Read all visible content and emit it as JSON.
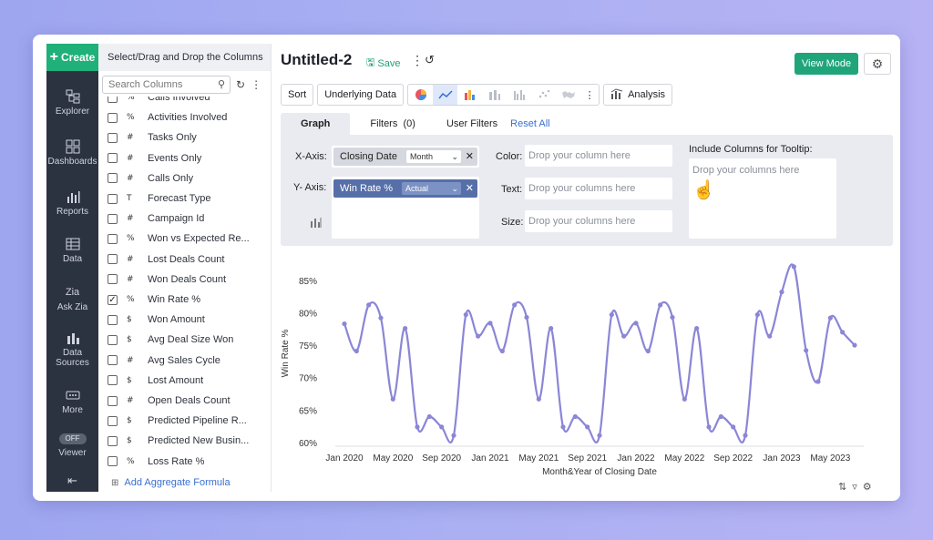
{
  "rail": {
    "create": "Create",
    "items": [
      {
        "label": "Explorer",
        "icon": "explorer-icon"
      },
      {
        "label": "Dashboards",
        "icon": "dashboards-icon"
      },
      {
        "label": "Reports",
        "icon": "reports-icon"
      },
      {
        "label": "Data",
        "icon": "data-icon"
      },
      {
        "label": "Ask Zia",
        "icon": "zia-icon"
      },
      {
        "label": "Data Sources",
        "icon": "data-sources-icon"
      },
      {
        "label": "More",
        "icon": "more-icon"
      },
      {
        "label": "Viewer",
        "icon": "viewer-icon"
      }
    ],
    "viewer_badge": "OFF"
  },
  "columns": {
    "header": "Select/Drag and Drop the Columns",
    "search_placeholder": "Search Columns",
    "items": [
      {
        "label": "Calls Involved",
        "type": "%",
        "checked": false
      },
      {
        "label": "Activities Involved",
        "type": "%",
        "checked": false
      },
      {
        "label": "Tasks Only",
        "type": "#",
        "checked": false
      },
      {
        "label": "Events Only",
        "type": "#",
        "checked": false
      },
      {
        "label": "Calls Only",
        "type": "#",
        "checked": false
      },
      {
        "label": "Forecast Type",
        "type": "T",
        "checked": false
      },
      {
        "label": "Campaign Id",
        "type": "#",
        "checked": false
      },
      {
        "label": "Won vs Expected Re...",
        "type": "%",
        "checked": false
      },
      {
        "label": "Lost Deals Count",
        "type": "#",
        "checked": false
      },
      {
        "label": "Won Deals Count",
        "type": "#",
        "checked": false
      },
      {
        "label": "Win Rate %",
        "type": "%",
        "checked": true
      },
      {
        "label": "Won Amount",
        "type": "$",
        "checked": false
      },
      {
        "label": "Avg Deal Size Won",
        "type": "$",
        "checked": false
      },
      {
        "label": "Avg Sales Cycle",
        "type": "#",
        "checked": false
      },
      {
        "label": "Lost Amount",
        "type": "$",
        "checked": false
      },
      {
        "label": "Open Deals Count",
        "type": "#",
        "checked": false
      },
      {
        "label": "Predicted Pipeline R...",
        "type": "$",
        "checked": false
      },
      {
        "label": "Predicted New Busin...",
        "type": "$",
        "checked": false
      },
      {
        "label": "Loss Rate %",
        "type": "%",
        "checked": false
      }
    ],
    "add_aggregate": "Add Aggregate Formula"
  },
  "header": {
    "title": "Untitled-2",
    "save": "Save",
    "view_mode": "View Mode"
  },
  "toolbar": {
    "sort": "Sort",
    "underlying_data": "Underlying Data",
    "analysis": "Analysis"
  },
  "tabs": {
    "graph": "Graph",
    "filters": "Filters",
    "filters_count": "(0)",
    "user_filters": "User Filters",
    "reset_all": "Reset All"
  },
  "config": {
    "x_axis_label": "X-Axis:",
    "x_axis_column": "Closing Date",
    "x_axis_agg": "Month",
    "y_axis_label": "Y- Axis:",
    "y_axis_column": "Win Rate %",
    "y_axis_agg": "Actual",
    "color_label": "Color:",
    "color_placeholder": "Drop your column here",
    "text_label": "Text:",
    "text_placeholder": "Drop your columns here",
    "size_label": "Size:",
    "size_placeholder": "Drop your columns here",
    "tooltip_label": "Include Columns for Tooltip:",
    "tooltip_placeholder": "Drop your columns here"
  },
  "colors": {
    "accent": "#20a57a",
    "line": "#8b86d6",
    "link": "#3a6fd0"
  },
  "chart_data": {
    "type": "line",
    "title": "",
    "xlabel": "Month&Year of Closing Date",
    "ylabel": "Win Rate %",
    "ylim": [
      60,
      87.5
    ],
    "yticks": [
      "60%",
      "65%",
      "70%",
      "75%",
      "80%",
      "85%"
    ],
    "ytick_values": [
      60,
      65,
      70,
      75,
      80,
      85
    ],
    "xticks": [
      "Jan 2020",
      "May 2020",
      "Sep 2020",
      "Jan 2021",
      "May 2021",
      "Sep 2021",
      "Jan 2022",
      "May 2022",
      "Sep 2022",
      "Jan 2023",
      "May 2023"
    ],
    "xtick_index": [
      0,
      4,
      8,
      12,
      16,
      20,
      24,
      28,
      32,
      36,
      40
    ],
    "x": [
      "Jan 2020",
      "Feb 2020",
      "Mar 2020",
      "Apr 2020",
      "May 2020",
      "Jun 2020",
      "Jul 2020",
      "Aug 2020",
      "Sep 2020",
      "Oct 2020",
      "Nov 2020",
      "Dec 2020",
      "Jan 2021",
      "Feb 2021",
      "Mar 2021",
      "Apr 2021",
      "May 2021",
      "Jun 2021",
      "Jul 2021",
      "Aug 2021",
      "Sep 2021",
      "Oct 2021",
      "Nov 2021",
      "Dec 2021",
      "Jan 2022",
      "Feb 2022",
      "Mar 2022",
      "Apr 2022",
      "May 2022",
      "Jun 2022",
      "Jul 2022",
      "Aug 2022",
      "Sep 2022",
      "Oct 2022",
      "Nov 2022",
      "Dec 2022",
      "Jan 2023",
      "Feb 2023",
      "Mar 2023",
      "Apr 2023",
      "May 2023",
      "Jun 2023",
      "Jul 2023"
    ],
    "values": [
      78.3,
      74.1,
      81.2,
      79.2,
      66.7,
      77.6,
      62.4,
      64.0,
      62.4,
      61.1,
      79.7,
      76.4,
      78.4,
      74.1,
      81.2,
      79.3,
      66.7,
      77.6,
      62.4,
      64.0,
      62.4,
      61.1,
      79.7,
      76.4,
      78.4,
      74.1,
      81.2,
      79.3,
      66.7,
      77.6,
      62.4,
      64.0,
      62.4,
      61.1,
      79.7,
      76.4,
      83.2,
      87.1,
      74.2,
      69.4,
      79.2,
      77.0,
      75.0
    ],
    "grid": false,
    "legend": "none"
  }
}
